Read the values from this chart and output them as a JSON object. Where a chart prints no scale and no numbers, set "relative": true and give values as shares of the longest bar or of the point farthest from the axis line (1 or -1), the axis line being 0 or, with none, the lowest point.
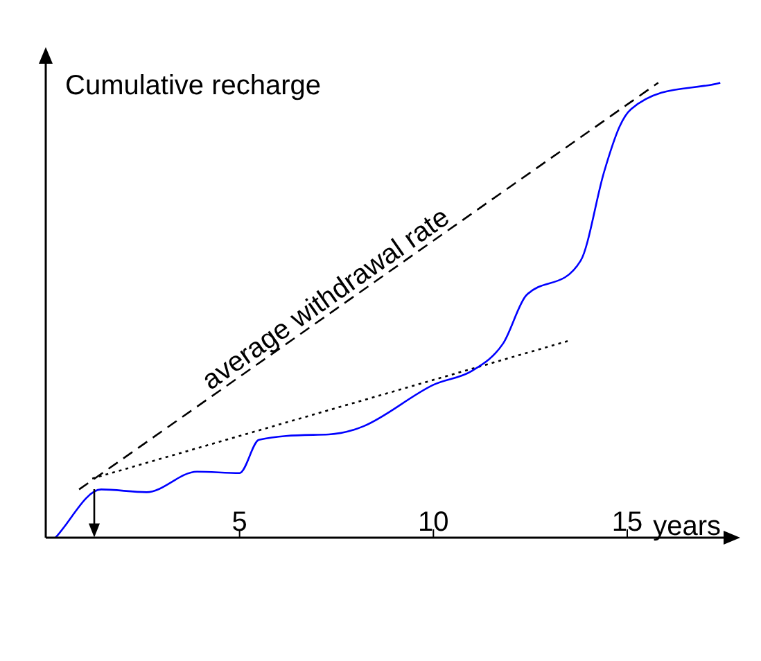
{
  "chart_data": {
    "type": "line",
    "relative": true,
    "xlabel": "years",
    "ylabel": "Cumulative recharge",
    "xlim": [
      0,
      17.7
    ],
    "xticks": [
      5,
      10,
      15
    ],
    "grid": false,
    "legend": false,
    "marker": "none",
    "series": [
      {
        "color": "#0000ff",
        "line_style": "solid",
        "x": [
          0.25,
          1.43,
          2.6,
          3.9,
          5.0,
          5.5,
          7.3,
          8.2,
          10,
          11,
          11.8,
          12.4,
          13.8,
          14.4,
          14.8,
          15.1,
          17.4
        ],
        "values": [
          0,
          0.106,
          0.1,
          0.145,
          0.142,
          0.215,
          0.227,
          0.245,
          0.336,
          0.367,
          0.427,
          0.533,
          0.609,
          0.803,
          0.903,
          0.942,
          1.0
        ]
      },
      {
        "color": "#000000",
        "line_style": "dashed",
        "x": [
          0.86,
          15.8
        ],
        "values": [
          0.106,
          1.0
        ]
      },
      {
        "color": "#000000",
        "line_style": "dotted",
        "x": [
          1.2,
          13.5
        ],
        "values": [
          0.13,
          0.433
        ]
      }
    ],
    "annotations": [
      "average withdrawal rate"
    ]
  }
}
